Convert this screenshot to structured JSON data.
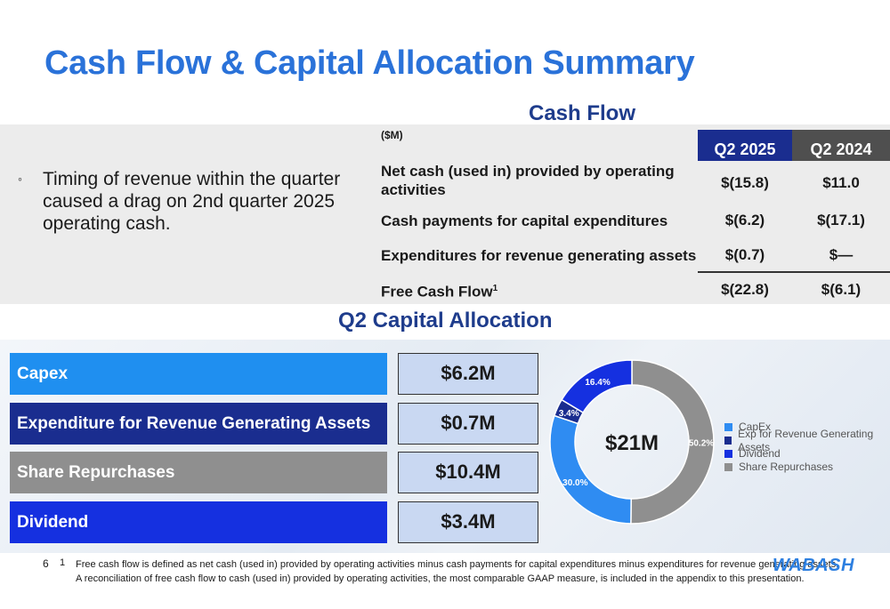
{
  "title": "Cash Flow & Capital Allocation Summary",
  "cash_flow": {
    "heading": "Cash Flow",
    "unit": "($M)",
    "columns": [
      "Q2 2025",
      "Q2 2024"
    ],
    "rows": [
      {
        "label": "Net cash (used in) provided by operating activities",
        "q2_2025": "$(15.8)",
        "q2_2024": "$11.0"
      },
      {
        "label": "Cash payments for capital expenditures",
        "q2_2025": "$(6.2)",
        "q2_2024": "$(17.1)"
      },
      {
        "label": "Expenditures for revenue generating assets",
        "q2_2025": "$(0.7)",
        "q2_2024": "$—"
      },
      {
        "label": "Free Cash Flow",
        "sup": "1",
        "q2_2025": "$(22.8)",
        "q2_2024": "$(6.1)"
      }
    ]
  },
  "bullet": {
    "mark": "◦",
    "text": "Timing of revenue within the quarter caused a drag on 2nd quarter 2025 operating cash."
  },
  "capital_allocation": {
    "heading": "Q2 Capital Allocation",
    "items": [
      {
        "label": "Capex",
        "value": "$6.2M",
        "color": "#1f8ff0"
      },
      {
        "label": "Expenditure for Revenue Generating Assets",
        "value": "$0.7M",
        "color": "#1a2d8f"
      },
      {
        "label": "Share Repurchases",
        "value": "$10.4M",
        "color": "#8f8f8f"
      },
      {
        "label": "Dividend",
        "value": "$3.4M",
        "color": "#1530e0"
      }
    ]
  },
  "chart_data": {
    "type": "pie",
    "center_label": "$21M",
    "categories": [
      "CapEx",
      "Exp for Revenue Generating Assets",
      "Dividend",
      "Share Repurchases"
    ],
    "values": [
      30.0,
      3.4,
      16.4,
      50.2
    ],
    "data_labels": [
      "30.0%",
      "3.4%",
      "16.4%",
      "50.2%"
    ],
    "colors": [
      "#2f8cf2",
      "#1a2d8f",
      "#1530e0",
      "#8f8f8f"
    ],
    "legend": "right"
  },
  "footer": {
    "page_number": "6",
    "footnote_number": "1",
    "footnote_line1": "Free cash flow is defined as net cash (used in) provided by operating activities minus cash payments for capital expenditures minus expenditures for revenue generating assets.",
    "footnote_line2": "A reconciliation of free cash flow to cash (used in) provided by operating activities, the most comparable GAAP measure, is included in the appendix to this presentation.",
    "logo_text": "WABASH"
  }
}
